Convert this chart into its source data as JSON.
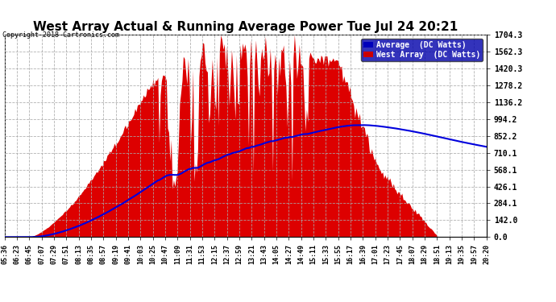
{
  "title": "West Array Actual & Running Average Power Tue Jul 24 20:21",
  "copyright": "Copyright 2018 Cartronics.com",
  "ylabel_right_ticks": [
    0.0,
    142.0,
    284.1,
    426.1,
    568.1,
    710.1,
    852.2,
    994.2,
    1136.2,
    1278.2,
    1420.3,
    1562.3,
    1704.3
  ],
  "ymax": 1704.3,
  "ymin": 0.0,
  "legend_labels": [
    "Average  (DC Watts)",
    "West Array  (DC Watts)"
  ],
  "legend_colors": [
    "#0000bb",
    "#cc0000"
  ],
  "legend_bg_color": "#0000aa",
  "grid_color": "#aaaaaa",
  "area_color": "#dd0000",
  "line_color": "#0000dd",
  "x_tick_labels": [
    "05:36",
    "06:23",
    "06:45",
    "07:07",
    "07:29",
    "07:51",
    "08:13",
    "08:35",
    "08:57",
    "09:19",
    "09:41",
    "10:03",
    "10:25",
    "10:47",
    "11:09",
    "11:31",
    "11:53",
    "12:15",
    "12:37",
    "12:59",
    "13:21",
    "13:43",
    "14:05",
    "14:27",
    "14:49",
    "15:11",
    "15:33",
    "15:55",
    "16:17",
    "16:39",
    "17:01",
    "17:23",
    "17:45",
    "18:07",
    "18:29",
    "18:51",
    "19:13",
    "19:35",
    "19:57",
    "20:20"
  ],
  "num_points": 400
}
